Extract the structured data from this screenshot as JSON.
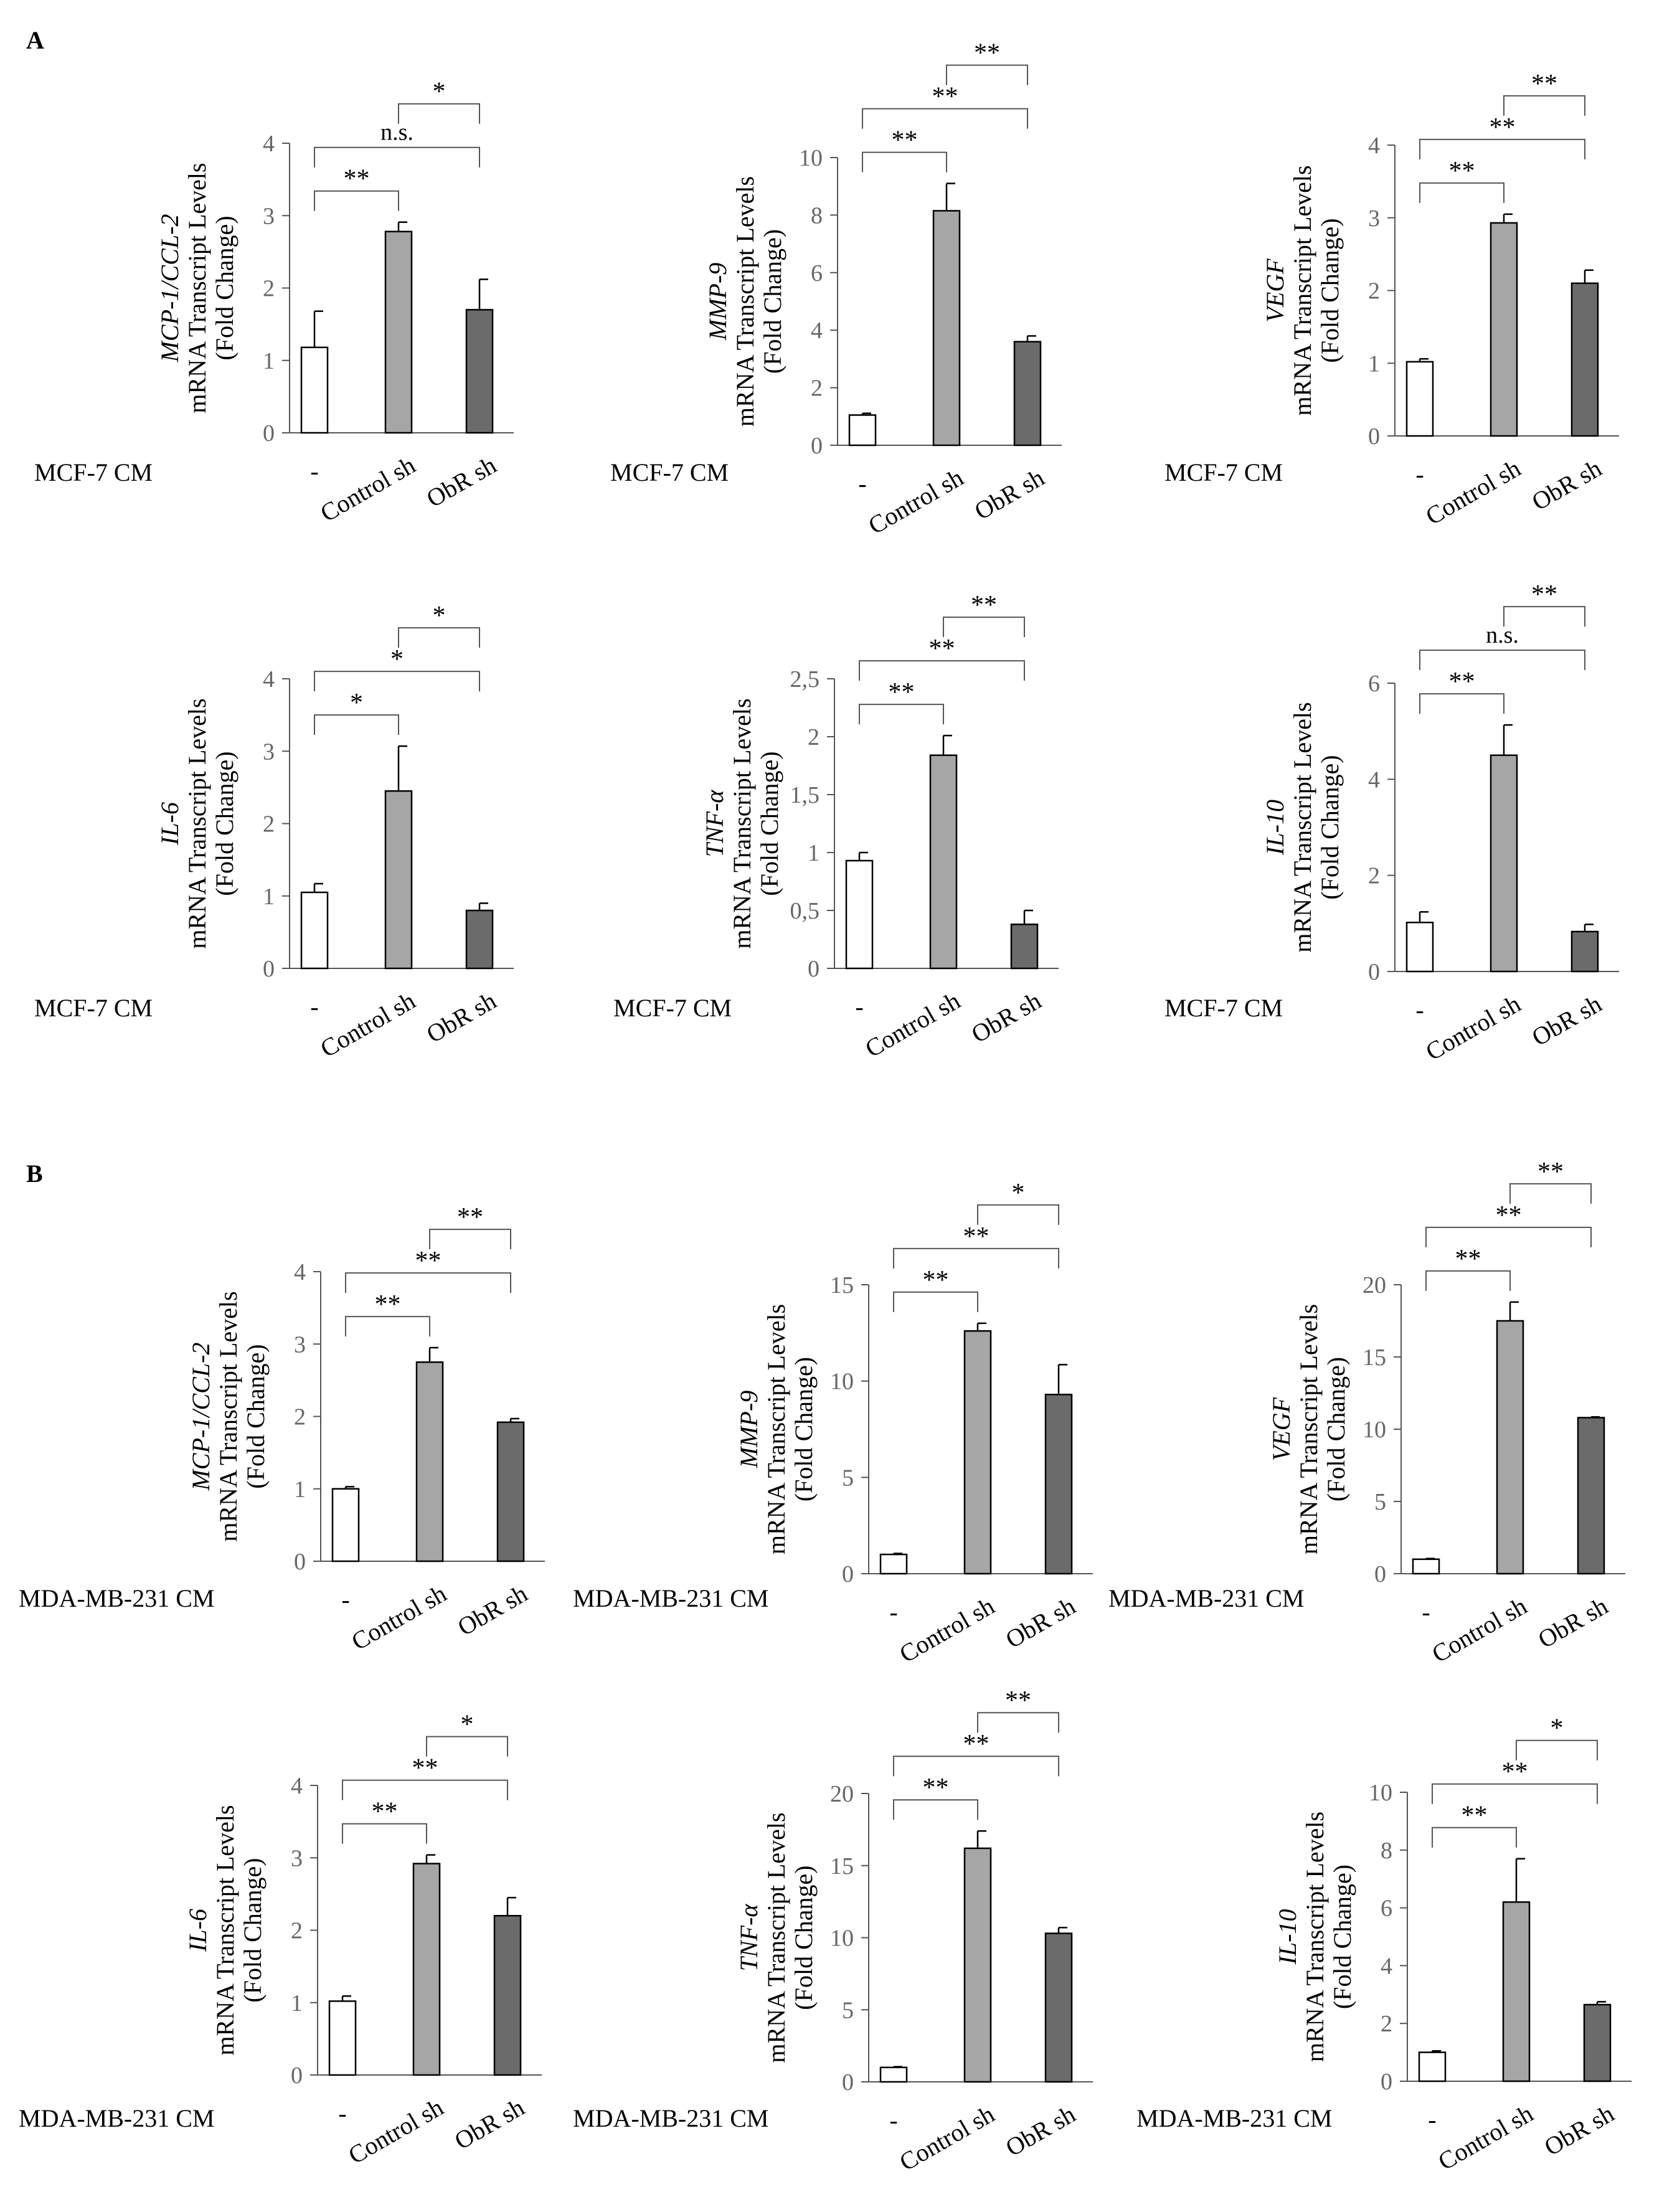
{
  "figure": {
    "panel_labels": [
      "A",
      "B"
    ]
  },
  "colors": {
    "axis": "#555555",
    "tick_text": "#666666",
    "text": "#000000",
    "bars": [
      "#ffffff",
      "#a6a6a6",
      "#6b6b6b"
    ],
    "bar_stroke": "#000000"
  },
  "chart_data": [
    {
      "type": "bar",
      "panel": "A",
      "gene": "MCP-1/CCL-2",
      "ylabel": "mRNA Transcript Levels",
      "ylabel2": "(Fold Change)",
      "treatment": "MCF-7 CM",
      "categories": [
        "-",
        "Control sh",
        "ObR sh"
      ],
      "values": [
        1.18,
        2.78,
        1.7
      ],
      "errors": [
        0.5,
        0.13,
        0.42
      ],
      "ylim": [
        0,
        4
      ],
      "yticks": [
        "0",
        "1",
        "2",
        "3",
        "4"
      ],
      "brackets": [
        {
          "from": 0,
          "to": 1,
          "label": "**"
        },
        {
          "from": 0,
          "to": 2,
          "label": "n.s."
        },
        {
          "from": 1,
          "to": 2,
          "label": "*"
        }
      ]
    },
    {
      "type": "bar",
      "panel": "A",
      "gene": "MMP-9",
      "ylabel": "mRNA Transcript Levels",
      "ylabel2": "(Fold Change)",
      "treatment": "MCF-7 CM",
      "categories": [
        "-",
        "Control sh",
        "ObR sh"
      ],
      "values": [
        1.05,
        8.15,
        3.6
      ],
      "errors": [
        0.06,
        0.95,
        0.2
      ],
      "ylim": [
        0,
        10
      ],
      "yticks": [
        "0",
        "2",
        "4",
        "6",
        "8",
        "10"
      ],
      "brackets": [
        {
          "from": 0,
          "to": 1,
          "label": "**"
        },
        {
          "from": 0,
          "to": 2,
          "label": "**"
        },
        {
          "from": 1,
          "to": 2,
          "label": "**"
        }
      ]
    },
    {
      "type": "bar",
      "panel": "A",
      "gene": "VEGF",
      "ylabel": "mRNA Transcript Levels",
      "ylabel2": "(Fold Change)",
      "treatment": "MCF-7 CM",
      "categories": [
        "-",
        "Control sh",
        "ObR sh"
      ],
      "values": [
        1.02,
        2.93,
        2.1
      ],
      "errors": [
        0.04,
        0.12,
        0.18
      ],
      "ylim": [
        0,
        4
      ],
      "yticks": [
        "0",
        "1",
        "2",
        "3",
        "4"
      ],
      "brackets": [
        {
          "from": 0,
          "to": 1,
          "label": "**"
        },
        {
          "from": 0,
          "to": 2,
          "label": "**"
        },
        {
          "from": 1,
          "to": 2,
          "label": "**"
        }
      ]
    },
    {
      "type": "bar",
      "panel": "A",
      "gene": "IL-6",
      "ylabel": "mRNA Transcript Levels",
      "ylabel2": "(Fold Change)",
      "treatment": "MCF-7 CM",
      "categories": [
        "-",
        "Control sh",
        "ObR sh"
      ],
      "values": [
        1.05,
        2.45,
        0.8
      ],
      "errors": [
        0.12,
        0.62,
        0.1
      ],
      "ylim": [
        0,
        4
      ],
      "yticks": [
        "0",
        "1",
        "2",
        "3",
        "4"
      ],
      "brackets": [
        {
          "from": 0,
          "to": 1,
          "label": "*"
        },
        {
          "from": 0,
          "to": 2,
          "label": "*"
        },
        {
          "from": 1,
          "to": 2,
          "label": "*"
        }
      ]
    },
    {
      "type": "bar",
      "panel": "A",
      "gene": "TNF-α",
      "ylabel": "mRNA Transcript Levels",
      "ylabel2": "(Fold Change)",
      "treatment": "MCF-7 CM",
      "categories": [
        "-",
        "Control sh",
        "ObR sh"
      ],
      "values": [
        0.93,
        1.84,
        0.38
      ],
      "errors": [
        0.07,
        0.17,
        0.12
      ],
      "ylim": [
        0,
        2.5
      ],
      "yticks": [
        "0",
        "0,5",
        "1",
        "1,5",
        "2",
        "2,5"
      ],
      "brackets": [
        {
          "from": 0,
          "to": 1,
          "label": "**"
        },
        {
          "from": 0,
          "to": 2,
          "label": "**"
        },
        {
          "from": 1,
          "to": 2,
          "label": "**"
        }
      ]
    },
    {
      "type": "bar",
      "panel": "A",
      "gene": "IL-10",
      "ylabel": "mRNA Transcript Levels",
      "ylabel2": "(Fold Change)",
      "treatment": "MCF-7 CM",
      "categories": [
        "-",
        "Control sh",
        "ObR sh"
      ],
      "values": [
        1.02,
        4.5,
        0.83
      ],
      "errors": [
        0.22,
        0.63,
        0.15
      ],
      "ylim": [
        0,
        6
      ],
      "yticks": [
        "0",
        "2",
        "4",
        "6"
      ],
      "brackets": [
        {
          "from": 0,
          "to": 1,
          "label": "**"
        },
        {
          "from": 0,
          "to": 2,
          "label": "n.s."
        },
        {
          "from": 1,
          "to": 2,
          "label": "**"
        }
      ]
    },
    {
      "type": "bar",
      "panel": "B",
      "gene": "MCP-1/CCL-2",
      "ylabel": "mRNA Transcript Levels",
      "ylabel2": "(Fold Change)",
      "treatment": "MDA-MB-231 CM",
      "categories": [
        "-",
        "Control sh",
        "ObR sh"
      ],
      "values": [
        1.0,
        2.75,
        1.92
      ],
      "errors": [
        0.03,
        0.2,
        0.05
      ],
      "ylim": [
        0,
        4
      ],
      "yticks": [
        "0",
        "1",
        "2",
        "3",
        "4"
      ],
      "brackets": [
        {
          "from": 0,
          "to": 1,
          "label": "**"
        },
        {
          "from": 0,
          "to": 2,
          "label": "**"
        },
        {
          "from": 1,
          "to": 2,
          "label": "**"
        }
      ]
    },
    {
      "type": "bar",
      "panel": "B",
      "gene": "MMP-9",
      "ylabel": "mRNA Transcript Levels",
      "ylabel2": "(Fold Change)",
      "treatment": "MDA-MB-231 CM",
      "categories": [
        "-",
        "Control sh",
        "ObR sh"
      ],
      "values": [
        1.0,
        12.6,
        9.3
      ],
      "errors": [
        0.05,
        0.4,
        1.55
      ],
      "ylim": [
        0,
        15
      ],
      "yticks": [
        "0",
        "5",
        "10",
        "15"
      ],
      "brackets": [
        {
          "from": 0,
          "to": 1,
          "label": "**"
        },
        {
          "from": 0,
          "to": 2,
          "label": "**"
        },
        {
          "from": 1,
          "to": 2,
          "label": "*"
        }
      ]
    },
    {
      "type": "bar",
      "panel": "B",
      "gene": "VEGF",
      "ylabel": "mRNA Transcript Levels",
      "ylabel2": "(Fold Change)",
      "treatment": "MDA-MB-231 CM",
      "categories": [
        "-",
        "Control sh",
        "ObR sh"
      ],
      "values": [
        1.0,
        17.5,
        10.8
      ],
      "errors": [
        0.05,
        1.3,
        0.05
      ],
      "ylim": [
        0,
        20
      ],
      "yticks": [
        "0",
        "5",
        "10",
        "15",
        "20"
      ],
      "brackets": [
        {
          "from": 0,
          "to": 1,
          "label": "**"
        },
        {
          "from": 0,
          "to": 2,
          "label": "**"
        },
        {
          "from": 1,
          "to": 2,
          "label": "**"
        }
      ]
    },
    {
      "type": "bar",
      "panel": "B",
      "gene": "IL-6",
      "ylabel": "mRNA Transcript Levels",
      "ylabel2": "(Fold Change)",
      "treatment": "MDA-MB-231 CM",
      "categories": [
        "-",
        "Control sh",
        "ObR sh"
      ],
      "values": [
        1.02,
        2.92,
        2.2
      ],
      "errors": [
        0.07,
        0.12,
        0.25
      ],
      "ylim": [
        0,
        4
      ],
      "yticks": [
        "0",
        "1",
        "2",
        "3",
        "4"
      ],
      "brackets": [
        {
          "from": 0,
          "to": 1,
          "label": "**"
        },
        {
          "from": 0,
          "to": 2,
          "label": "**"
        },
        {
          "from": 1,
          "to": 2,
          "label": "*"
        }
      ]
    },
    {
      "type": "bar",
      "panel": "B",
      "gene": "TNF-α",
      "ylabel": "mRNA Transcript Levels",
      "ylabel2": "(Fold Change)",
      "treatment": "MDA-MB-231 CM",
      "categories": [
        "-",
        "Control sh",
        "ObR sh"
      ],
      "values": [
        1.0,
        16.2,
        10.3
      ],
      "errors": [
        0.05,
        1.2,
        0.4
      ],
      "ylim": [
        0,
        20
      ],
      "yticks": [
        "0",
        "5",
        "10",
        "15",
        "20"
      ],
      "brackets": [
        {
          "from": 0,
          "to": 1,
          "label": "**"
        },
        {
          "from": 0,
          "to": 2,
          "label": "**"
        },
        {
          "from": 1,
          "to": 2,
          "label": "**"
        }
      ]
    },
    {
      "type": "bar",
      "panel": "B",
      "gene": "IL-10",
      "ylabel": "mRNA Transcript Levels",
      "ylabel2": "(Fold Change)",
      "treatment": "MDA-MB-231 CM",
      "categories": [
        "-",
        "Control sh",
        "ObR sh"
      ],
      "values": [
        1.0,
        6.2,
        2.65
      ],
      "errors": [
        0.05,
        1.5,
        0.1
      ],
      "ylim": [
        0,
        10
      ],
      "yticks": [
        "0",
        "2",
        "4",
        "6",
        "8",
        "10"
      ],
      "brackets": [
        {
          "from": 0,
          "to": 1,
          "label": "**"
        },
        {
          "from": 0,
          "to": 2,
          "label": "**"
        },
        {
          "from": 1,
          "to": 2,
          "label": "*"
        }
      ]
    }
  ]
}
